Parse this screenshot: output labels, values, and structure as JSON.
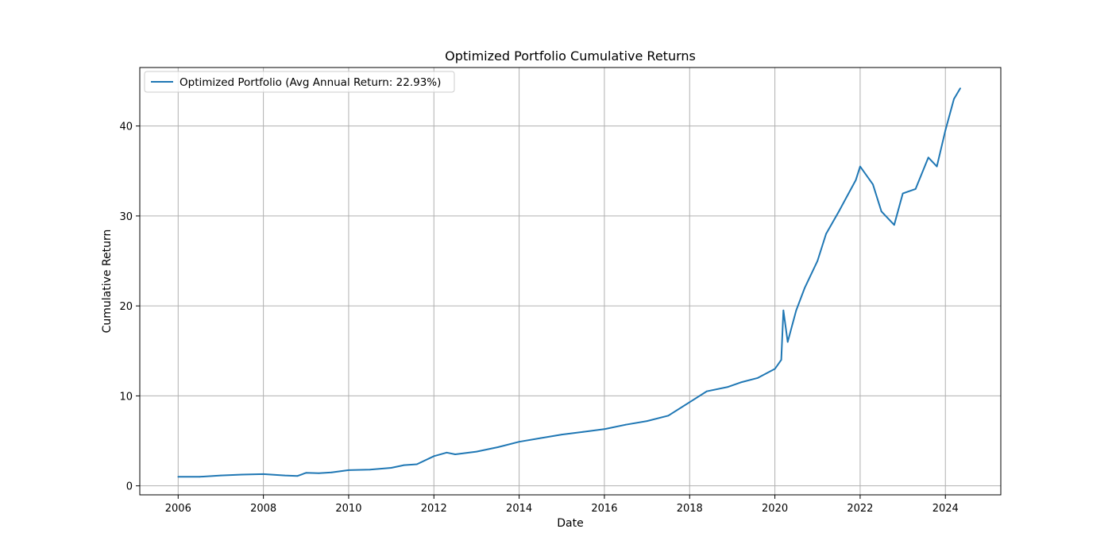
{
  "chart_data": {
    "type": "line",
    "title": "Optimized Portfolio Cumulative Returns",
    "xlabel": "Date",
    "ylabel": "Cumulative Return",
    "xlim": [
      2005.1,
      2025.3
    ],
    "ylim": [
      -1.0,
      46.5
    ],
    "x_ticks": [
      2006,
      2008,
      2010,
      2012,
      2014,
      2016,
      2018,
      2020,
      2022,
      2024
    ],
    "x_tick_labels": [
      "2006",
      "2008",
      "2010",
      "2012",
      "2014",
      "2016",
      "2018",
      "2020",
      "2022",
      "2024"
    ],
    "y_ticks": [
      0,
      10,
      20,
      30,
      40
    ],
    "y_tick_labels": [
      "0",
      "10",
      "20",
      "30",
      "40"
    ],
    "grid": true,
    "legend": "upper-left",
    "series": [
      {
        "name": "Optimized Portfolio (Avg Annual Return: 22.93%)",
        "color": "#1f77b4",
        "x": [
          2006.0,
          2006.5,
          2007.0,
          2007.5,
          2008.0,
          2008.5,
          2008.8,
          2009.0,
          2009.3,
          2009.6,
          2010.0,
          2010.5,
          2011.0,
          2011.3,
          2011.6,
          2012.0,
          2012.3,
          2012.5,
          2013.0,
          2013.5,
          2014.0,
          2014.5,
          2015.0,
          2015.5,
          2016.0,
          2016.5,
          2017.0,
          2017.5,
          2018.0,
          2018.4,
          2018.9,
          2019.2,
          2019.6,
          2020.0,
          2020.15,
          2020.2,
          2020.3,
          2020.5,
          2020.7,
          2021.0,
          2021.2,
          2021.5,
          2021.9,
          2022.0,
          2022.3,
          2022.5,
          2022.8,
          2023.0,
          2023.3,
          2023.6,
          2023.8,
          2024.0,
          2024.2,
          2024.35
        ],
        "y": [
          1.0,
          1.0,
          1.15,
          1.25,
          1.3,
          1.15,
          1.1,
          1.45,
          1.4,
          1.5,
          1.75,
          1.8,
          2.0,
          2.3,
          2.4,
          3.3,
          3.7,
          3.5,
          3.8,
          4.3,
          4.9,
          5.3,
          5.7,
          6.0,
          6.3,
          6.8,
          7.2,
          7.8,
          9.3,
          10.5,
          11.0,
          11.5,
          12.0,
          13.0,
          14.0,
          19.5,
          16.0,
          19.5,
          22.0,
          25.0,
          28.0,
          30.5,
          34.0,
          35.5,
          33.5,
          30.5,
          29.0,
          32.5,
          33.0,
          36.5,
          35.5,
          39.5,
          43.0,
          44.2
        ]
      }
    ]
  }
}
